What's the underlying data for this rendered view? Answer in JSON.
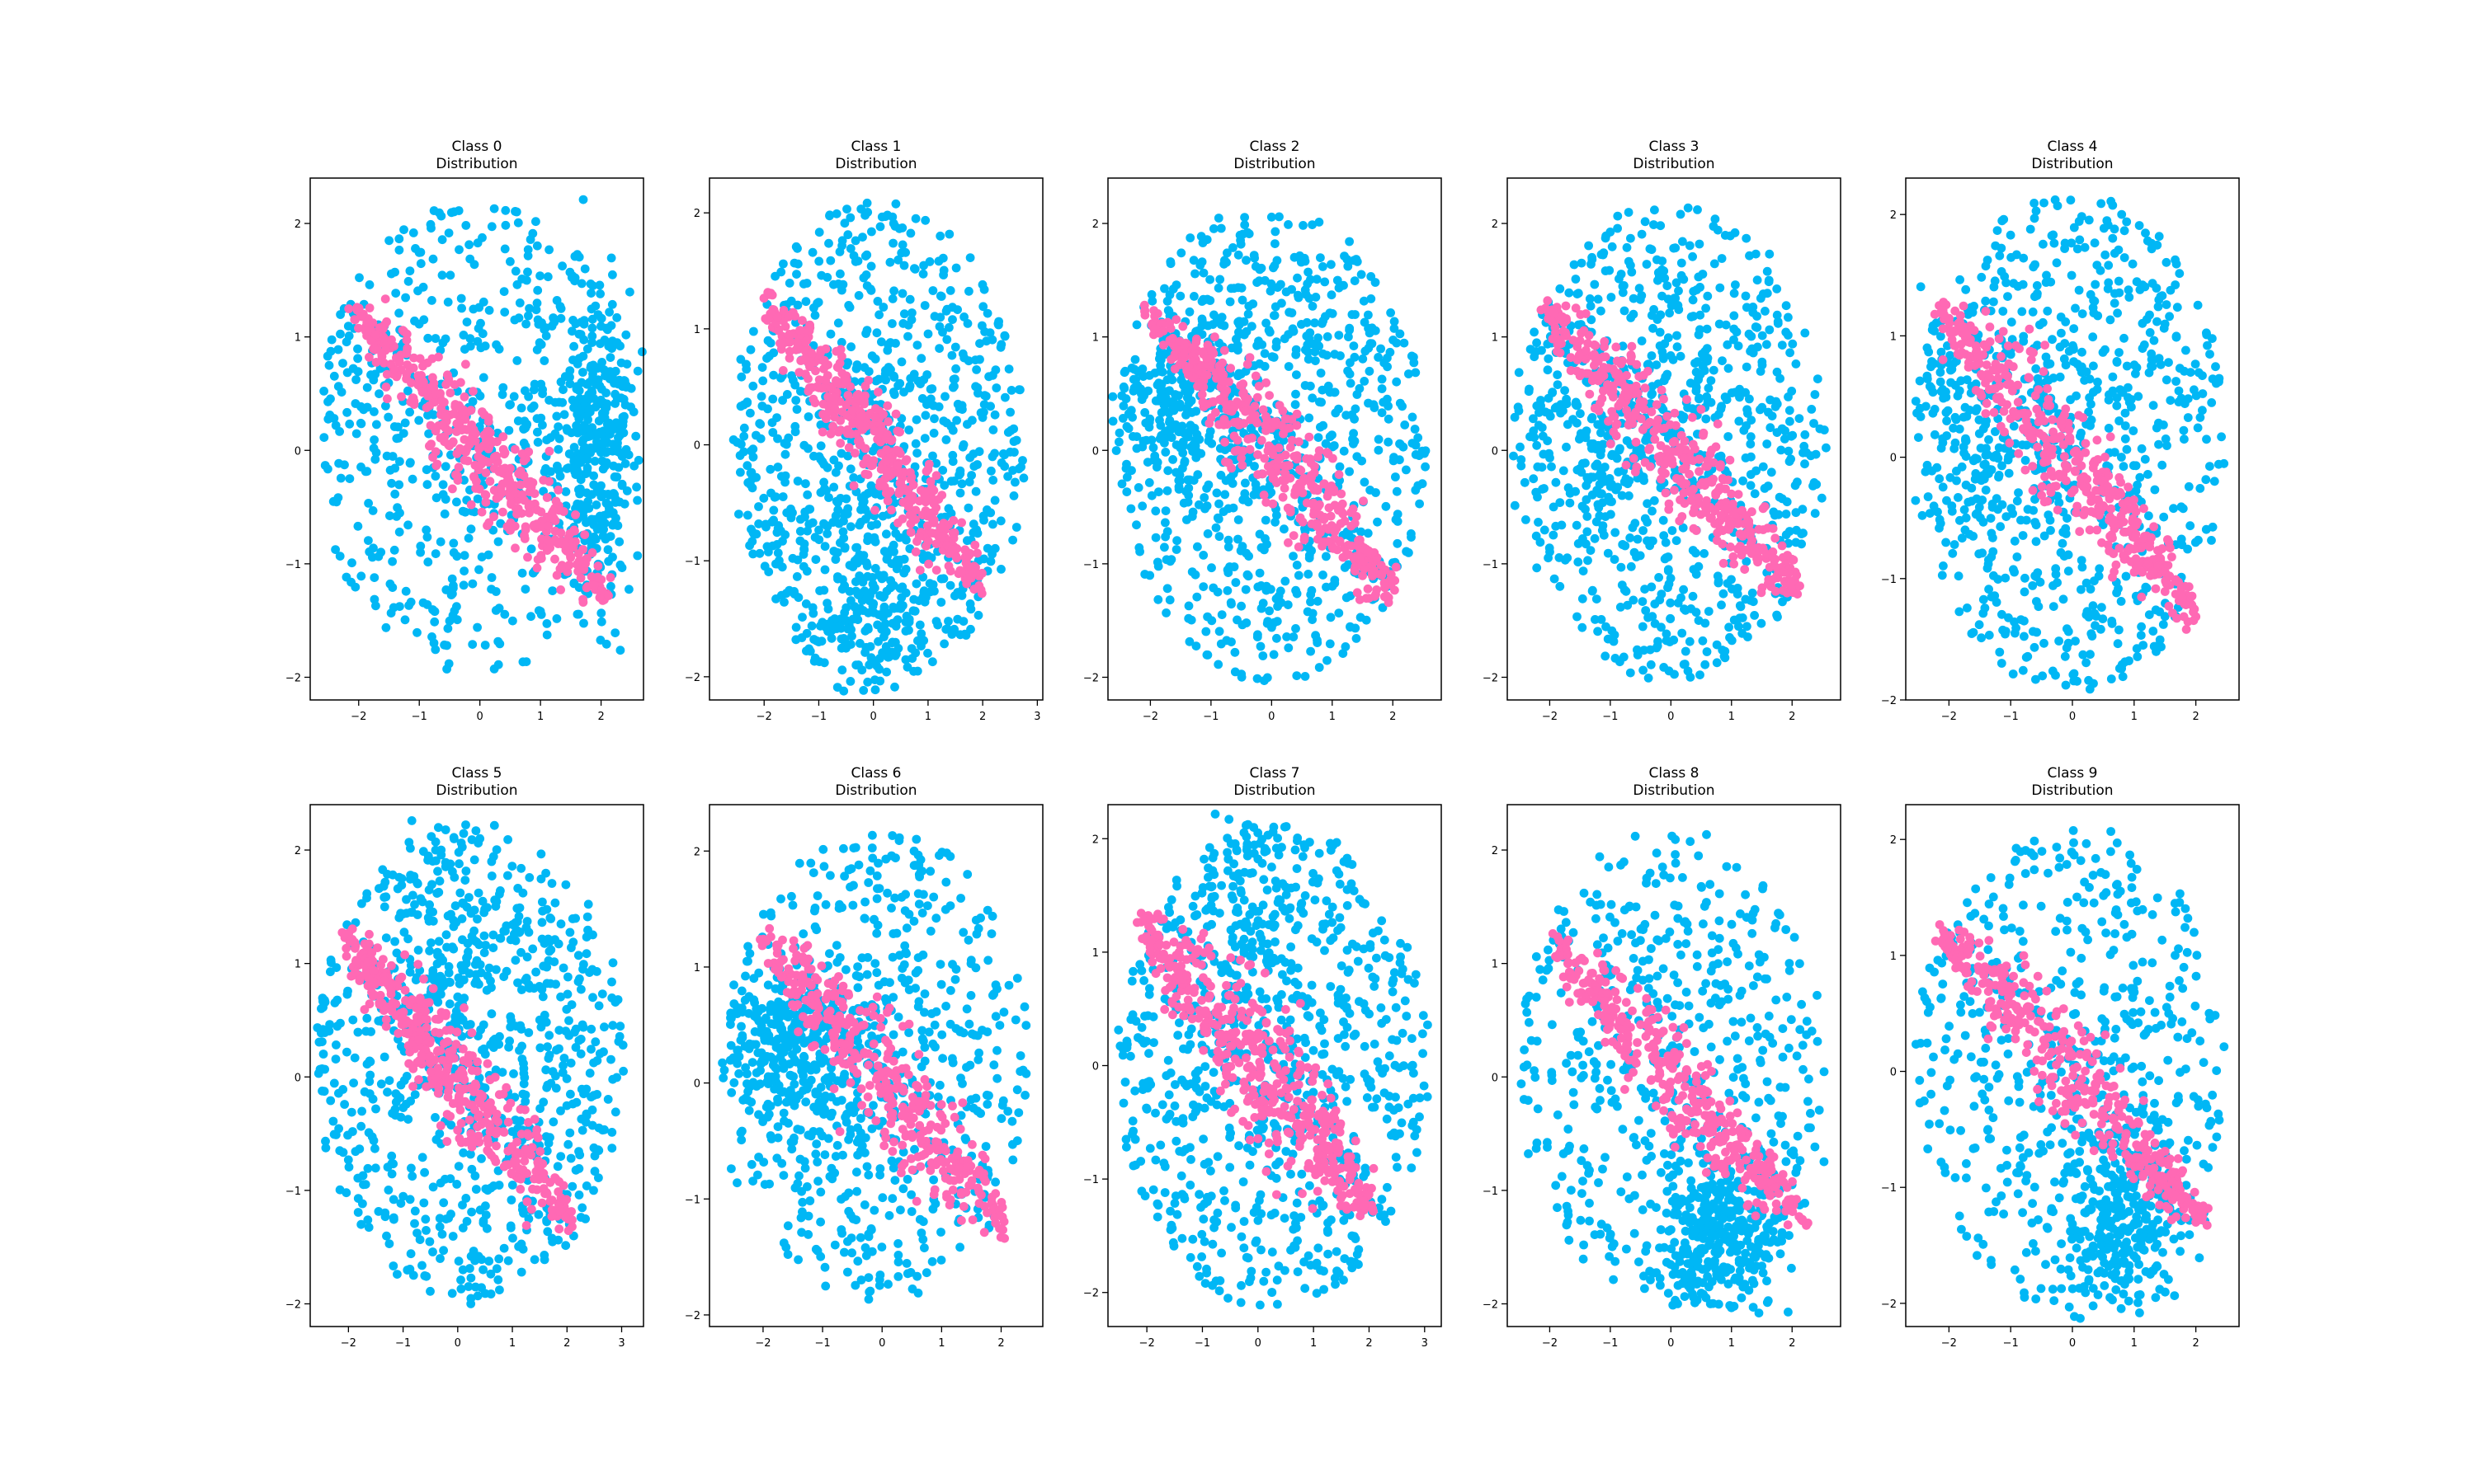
{
  "colors": {
    "background": "#cbeef9",
    "embedded": "#ff69b4",
    "point": "#00b7f5"
  },
  "chart_data": [
    {
      "type": "scatter",
      "title": "Class 0\nDistribution",
      "xlim": [
        -2.8,
        2.7
      ],
      "ylim": [
        -2.2,
        2.4
      ],
      "xticks": [
        -2,
        -1,
        0,
        1,
        2
      ],
      "yticks": [
        -2,
        -1,
        0,
        1,
        2
      ],
      "grid": false,
      "background_dense": {
        "cx": 1.9,
        "cy": 0.1,
        "sx": 0.35,
        "sy": 0.7,
        "rho": 0,
        "frac": 0.35
      },
      "background_shape": {
        "x": [
          -2.7,
          2.6
        ],
        "y": [
          -2.0,
          2.2
        ],
        "n": 900
      },
      "embedded_band": {
        "x0": -2.1,
        "y0": 1.25,
        "x1": 2.1,
        "y1": -1.28,
        "width": 0.12,
        "n": 420
      }
    },
    {
      "type": "scatter",
      "title": "Class 1\nDistribution",
      "xlim": [
        -3.0,
        3.1
      ],
      "ylim": [
        -2.2,
        2.3
      ],
      "xticks": [
        -2,
        -1,
        0,
        1,
        2,
        3
      ],
      "yticks": [
        -2,
        -1,
        0,
        1,
        2
      ],
      "grid": false,
      "background_dense": {
        "cx": 0.0,
        "cy": -1.3,
        "sx": 0.6,
        "sy": 0.4,
        "rho": 0,
        "frac": 0.15
      },
      "background_shape": {
        "x": [
          -2.6,
          2.8
        ],
        "y": [
          -2.05,
          2.1
        ],
        "n": 1000
      },
      "embedded_band": {
        "x0": -2.0,
        "y0": 1.25,
        "x1": 2.0,
        "y1": -1.22,
        "width": 0.11,
        "n": 420
      }
    },
    {
      "type": "scatter",
      "title": "Class 2\nDistribution",
      "xlim": [
        -2.7,
        2.8
      ],
      "ylim": [
        -2.2,
        2.4
      ],
      "xticks": [
        -2,
        -1,
        0,
        1,
        2
      ],
      "yticks": [
        -2,
        -1,
        0,
        1,
        2
      ],
      "grid": false,
      "background_dense": {
        "cx": -1.5,
        "cy": 0.4,
        "sx": 0.5,
        "sy": 0.4,
        "rho": 0,
        "frac": 0.2
      },
      "background_shape": {
        "x": [
          -2.55,
          2.55
        ],
        "y": [
          -2.05,
          2.2
        ],
        "n": 1000
      },
      "embedded_band": {
        "x0": -2.1,
        "y0": 1.25,
        "x1": 2.1,
        "y1": -1.27,
        "width": 0.12,
        "n": 420
      }
    },
    {
      "type": "scatter",
      "title": "Class 3\nDistribution",
      "xlim": [
        -2.7,
        2.8
      ],
      "ylim": [
        -2.2,
        2.4
      ],
      "xticks": [
        -2,
        -1,
        0,
        1,
        2
      ],
      "yticks": [
        -2,
        -1,
        0,
        1,
        2
      ],
      "grid": false,
      "background_dense": {
        "cx": -1.3,
        "cy": 0.3,
        "sx": 0.7,
        "sy": 0.5,
        "rho": 0,
        "frac": 0.12
      },
      "background_shape": {
        "x": [
          -2.55,
          2.6
        ],
        "y": [
          -2.05,
          2.2
        ],
        "n": 900
      },
      "embedded_band": {
        "x0": -2.1,
        "y0": 1.25,
        "x1": 2.1,
        "y1": -1.25,
        "width": 0.12,
        "n": 420
      }
    },
    {
      "type": "scatter",
      "title": "Class 4\nDistribution",
      "xlim": [
        -2.7,
        2.7
      ],
      "ylim": [
        -2.0,
        2.3
      ],
      "xticks": [
        -2,
        -1,
        0,
        1,
        2
      ],
      "yticks": [
        -2,
        -1,
        0,
        1,
        2
      ],
      "grid": false,
      "background_dense": {
        "cx": -1.5,
        "cy": 0.2,
        "sx": 0.6,
        "sy": 0.5,
        "rho": 0,
        "frac": 0.12
      },
      "background_shape": {
        "x": [
          -2.55,
          2.5
        ],
        "y": [
          -1.95,
          2.2
        ],
        "n": 850
      },
      "embedded_band": {
        "x0": -2.2,
        "y0": 1.23,
        "x1": 2.0,
        "y1": -1.3,
        "width": 0.13,
        "n": 420
      }
    },
    {
      "type": "scatter",
      "title": "Class 5\nDistribution",
      "xlim": [
        -2.7,
        3.4
      ],
      "ylim": [
        -2.2,
        2.4
      ],
      "xticks": [
        -2,
        -1,
        0,
        1,
        2,
        3
      ],
      "yticks": [
        -2,
        -1,
        0,
        1,
        2
      ],
      "grid": false,
      "background_dense": {
        "cx": -0.2,
        "cy": 1.0,
        "sx": 0.5,
        "sy": 0.6,
        "rho": 0,
        "frac": 0.12
      },
      "background_shape": {
        "x": [
          -2.6,
          3.1
        ],
        "y": [
          -2.0,
          2.25
        ],
        "n": 900
      },
      "embedded_band": {
        "x0": -2.1,
        "y0": 1.25,
        "x1": 2.1,
        "y1": -1.27,
        "width": 0.12,
        "n": 420
      }
    },
    {
      "type": "scatter",
      "title": "Class 6\nDistribution",
      "xlim": [
        -2.9,
        2.7
      ],
      "ylim": [
        -2.1,
        2.4
      ],
      "xticks": [
        -2,
        -1,
        0,
        1,
        2
      ],
      "yticks": [
        -2,
        -1,
        0,
        1,
        2
      ],
      "grid": false,
      "background_dense": {
        "cx": -1.5,
        "cy": 0.3,
        "sx": 0.6,
        "sy": 0.4,
        "rho": 0,
        "frac": 0.35
      },
      "background_shape": {
        "x": [
          -2.6,
          2.5
        ],
        "y": [
          -1.9,
          2.2
        ],
        "n": 900
      },
      "embedded_band": {
        "x0": -2.0,
        "y0": 1.25,
        "x1": 2.1,
        "y1": -1.25,
        "width": 0.12,
        "n": 380
      }
    },
    {
      "type": "scatter",
      "title": "Class 7\nDistribution",
      "xlim": [
        -2.7,
        3.3
      ],
      "ylim": [
        -2.3,
        2.3
      ],
      "xticks": [
        -2,
        -1,
        0,
        1,
        2,
        3
      ],
      "yticks": [
        -2,
        -1,
        0,
        1,
        2
      ],
      "grid": false,
      "background_dense": {
        "cx": -0.1,
        "cy": 1.6,
        "sx": 0.4,
        "sy": 0.4,
        "rho": 0,
        "frac": 0.08
      },
      "background_shape": {
        "x": [
          -2.55,
          3.1
        ],
        "y": [
          -2.15,
          2.15
        ],
        "n": 900
      },
      "embedded_band": {
        "x0": -2.1,
        "y0": 1.25,
        "x1": 2.1,
        "y1": -1.27,
        "width": 0.15,
        "n": 450
      }
    },
    {
      "type": "scatter",
      "title": "Class 8\nDistribution",
      "xlim": [
        -2.7,
        2.8
      ],
      "ylim": [
        -2.2,
        2.4
      ],
      "xticks": [
        -2,
        -1,
        0,
        1,
        2
      ],
      "yticks": [
        -2,
        -1,
        0,
        1,
        2
      ],
      "grid": false,
      "background_dense": {
        "cx": 0.8,
        "cy": -1.4,
        "sx": 0.55,
        "sy": 0.4,
        "rho": 0,
        "frac": 0.4
      },
      "background_shape": {
        "x": [
          -2.55,
          2.6
        ],
        "y": [
          -2.0,
          2.2
        ],
        "n": 850
      },
      "embedded_band": {
        "x0": -2.0,
        "y0": 1.18,
        "x1": 2.2,
        "y1": -1.27,
        "width": 0.11,
        "n": 380
      }
    },
    {
      "type": "scatter",
      "title": "Class 9\nDistribution",
      "xlim": [
        -2.7,
        2.7
      ],
      "ylim": [
        -2.2,
        2.3
      ],
      "xticks": [
        -2,
        -1,
        0,
        1,
        2
      ],
      "yticks": [
        -2,
        -1,
        0,
        1,
        2
      ],
      "grid": false,
      "background_dense": {
        "cx": 0.8,
        "cy": -1.3,
        "sx": 0.5,
        "sy": 0.5,
        "rho": 0,
        "frac": 0.38
      },
      "background_shape": {
        "x": [
          -2.55,
          2.5
        ],
        "y": [
          -2.05,
          2.15
        ],
        "n": 850
      },
      "embedded_band": {
        "x0": -2.2,
        "y0": 1.25,
        "x1": 2.1,
        "y1": -1.27,
        "width": 0.11,
        "n": 380
      }
    }
  ]
}
